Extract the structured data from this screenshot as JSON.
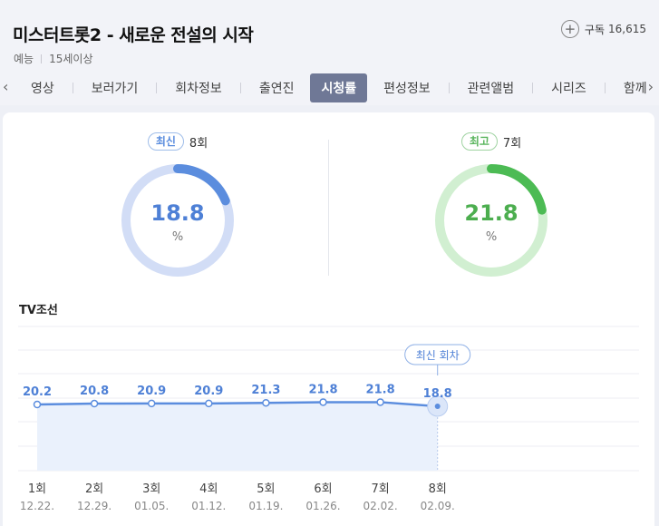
{
  "header": {
    "title": "미스터트롯2 - 새로운 전설의 시작",
    "genre": "예능",
    "rating_age": "15세이상",
    "subscribe_label": "구독",
    "subscribe_count": "16,615"
  },
  "tabs": {
    "prev_icon": "chevron-left-icon",
    "next_icon": "chevron-right-icon",
    "items": [
      {
        "label": "영상",
        "active": false
      },
      {
        "label": "보러가기",
        "active": false
      },
      {
        "label": "회차정보",
        "active": false
      },
      {
        "label": "출연진",
        "active": false
      },
      {
        "label": "시청률",
        "active": true
      },
      {
        "label": "편성정보",
        "active": false
      },
      {
        "label": "관련앨범",
        "active": false
      },
      {
        "label": "시리즈",
        "active": false
      },
      {
        "label": "함께",
        "active": false
      }
    ]
  },
  "latest": {
    "badge": "최신",
    "episode": "8회",
    "value": "18.8",
    "unit": "%",
    "color": "#5b8dde",
    "track_color": "#d2ddf6"
  },
  "best": {
    "badge": "최고",
    "episode": "7회",
    "value": "21.8",
    "unit": "%",
    "color": "#4cbb54",
    "track_color": "#d1efd1"
  },
  "chart_title": "TV조선",
  "chart_data": {
    "type": "line",
    "x": [
      "1회",
      "2회",
      "3회",
      "4회",
      "5회",
      "6회",
      "7회",
      "8회"
    ],
    "dates": [
      "12.22.",
      "12.29.",
      "01.05.",
      "01.12.",
      "01.19.",
      "01.26.",
      "02.02.",
      "02.09."
    ],
    "values": [
      20.2,
      20.8,
      20.9,
      20.9,
      21.3,
      21.8,
      21.8,
      18.8
    ],
    "labels": [
      "20.2",
      "20.8",
      "20.9",
      "20.9",
      "21.3",
      "21.8",
      "21.8",
      "18.8"
    ],
    "callout": "최신 회차",
    "line_color": "#5b8dde",
    "fill_color": "#eaf1fc",
    "grid": true
  }
}
